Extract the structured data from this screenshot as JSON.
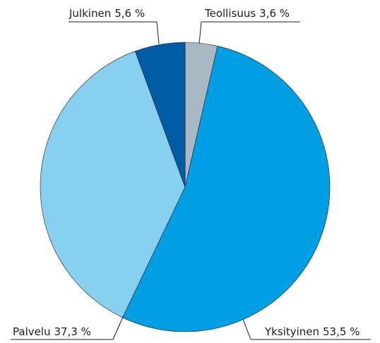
{
  "chart_data": {
    "type": "pie",
    "categories": [
      "Teollisuus",
      "Yksityinen",
      "Palvelu",
      "Julkinen"
    ],
    "values": [
      3.6,
      53.5,
      37.3,
      5.6
    ],
    "value_labels": [
      "3,6 %",
      "53,5 %",
      "37,3 %",
      "5,6 %"
    ],
    "colors": [
      "#a9b9c3",
      "#009fe3",
      "#88d0f0",
      "#005ca4"
    ]
  }
}
